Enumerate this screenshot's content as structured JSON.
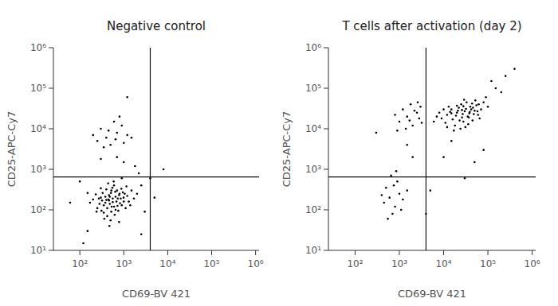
{
  "chart_data": [
    {
      "type": "scatter",
      "title": "Negative control",
      "x_label": "CD69-BV 421",
      "y_label": "CD25-APC-Cy7",
      "log": true,
      "color": "#000000",
      "xlim": [
        25,
        1200000
      ],
      "ylim": [
        10,
        1000000
      ],
      "xticks": [
        {
          "value": 100,
          "label": "10²"
        },
        {
          "value": 1000,
          "label": "10³"
        },
        {
          "value": 10000,
          "label": "10⁴"
        },
        {
          "value": 100000,
          "label": "10⁵"
        },
        {
          "value": 1000000,
          "label": "10⁶"
        }
      ],
      "yticks": [
        {
          "value": 10,
          "label": "10¹"
        },
        {
          "value": 100,
          "label": "10²"
        },
        {
          "value": 1000,
          "label": "10³"
        },
        {
          "value": 10000,
          "label": "10⁴"
        },
        {
          "value": 100000,
          "label": "10⁵"
        },
        {
          "value": 1000000,
          "label": "10⁶"
        }
      ],
      "gate": {
        "x": 4000,
        "y": 650
      },
      "x": [
        450,
        600,
        300,
        800,
        520,
        380,
        700,
        1000,
        250,
        650,
        420,
        900,
        550,
        330,
        1200,
        480,
        750,
        200,
        600,
        1500,
        350,
        850,
        460,
        280,
        1100,
        500,
        680,
        400,
        950,
        230,
        560,
        720,
        310,
        1300,
        440,
        620,
        380,
        880,
        530,
        170,
        780,
        460,
        1700,
        360,
        640,
        270,
        990,
        510,
        420,
        820,
        590,
        300,
        2000,
        470,
        730,
        350,
        1150,
        560,
        240,
        900,
        150,
        650,
        400,
        1400,
        520,
        780,
        320,
        1050,
        480,
        2500,
        400,
        700,
        250,
        900,
        500,
        1200,
        300,
        650,
        800,
        450,
        1500,
        200,
        600,
        1000,
        350,
        150,
        100,
        3000,
        5000,
        1800,
        1000,
        60,
        2500,
        700,
        120,
        4000,
        300,
        8000,
        1200,
        2200
      ],
      "values": [
        180,
        120,
        200,
        250,
        90,
        150,
        300,
        160,
        110,
        210,
        70,
        130,
        350,
        260,
        220,
        140,
        95,
        180,
        400,
        300,
        85,
        190,
        230,
        140,
        110,
        55,
        160,
        320,
        270,
        240,
        190,
        125,
        95,
        160,
        450,
        75,
        210,
        330,
        120,
        150,
        230,
        170,
        190,
        60,
        280,
        190,
        200,
        260,
        110,
        145,
        500,
        340,
        250,
        40,
        190,
        130,
        380,
        155,
        90,
        600,
        260,
        100,
        175,
        130,
        300,
        50,
        170,
        250,
        210,
        400,
        6000,
        8000,
        5000,
        12000,
        4000,
        7000,
        10000,
        5500,
        20000,
        9000,
        6000,
        7000,
        15000,
        4500,
        3500,
        30,
        500,
        90,
        200,
        1200,
        1500,
        150,
        25,
        2000,
        15,
        600,
        1800,
        1000,
        60000,
        800
      ]
    },
    {
      "type": "scatter",
      "title": "T cells after activation (day 2)",
      "x_label": "CD69-BV 421",
      "y_label": "CD25-APC-Cy7",
      "log": true,
      "color": "#000000",
      "xlim": [
        25,
        1200000
      ],
      "ylim": [
        10,
        1000000
      ],
      "xticks": [
        {
          "value": 100,
          "label": "10²"
        },
        {
          "value": 1000,
          "label": "10³"
        },
        {
          "value": 10000,
          "label": "10⁴"
        },
        {
          "value": 100000,
          "label": "10⁵"
        },
        {
          "value": 1000000,
          "label": "10⁶"
        }
      ],
      "yticks": [
        {
          "value": 10,
          "label": "10¹"
        },
        {
          "value": 100,
          "label": "10²"
        },
        {
          "value": 1000,
          "label": "10³"
        },
        {
          "value": 10000,
          "label": "10⁴"
        },
        {
          "value": 100000,
          "label": "10⁵"
        },
        {
          "value": 1000000,
          "label": "10⁶"
        }
      ],
      "gate": {
        "x": 4000,
        "y": 650
      },
      "x": [
        20000,
        35000,
        15000,
        50000,
        28000,
        12000,
        40000,
        25000,
        60000,
        18000,
        30000,
        9000,
        45000,
        22000,
        70000,
        14000,
        33000,
        26000,
        55000,
        11000,
        38000,
        19000,
        80000,
        24000,
        42000,
        16000,
        29000,
        65000,
        8000,
        36000,
        21000,
        48000,
        13000,
        27000,
        90000,
        17000,
        32000,
        58000,
        10000,
        44000,
        23000,
        7000,
        37000,
        52000,
        20000,
        31000,
        100000,
        15000,
        46000,
        6000,
        26000,
        62000,
        12000,
        39000,
        28000,
        1500,
        2500,
        1000,
        3000,
        2000,
        1200,
        2800,
        800,
        1800,
        3200,
        1400,
        2200,
        900,
        2600,
        1700,
        600,
        800,
        500,
        1000,
        700,
        900,
        450,
        1200,
        650,
        550,
        1500,
        750,
        400,
        1100,
        850,
        150000,
        250000,
        120000,
        400000,
        200000,
        10000,
        30000,
        5000,
        80000,
        2000,
        15000,
        1500,
        50000,
        4000,
        300
      ],
      "values": [
        25000,
        20000,
        30000,
        28000,
        15000,
        22000,
        35000,
        40000,
        22000,
        12000,
        27000,
        18000,
        16000,
        33000,
        30000,
        26000,
        45000,
        19000,
        38000,
        14000,
        24000,
        21000,
        45000,
        10000,
        30000,
        17000,
        52000,
        18000,
        25000,
        13000,
        28000,
        23000,
        35000,
        23000,
        60000,
        9000,
        31000,
        27000,
        30000,
        42000,
        16000,
        20000,
        19000,
        50000,
        37000,
        11000,
        35000,
        24000,
        33000,
        15000,
        29000,
        40000,
        11000,
        26000,
        36000,
        20000,
        25000,
        15000,
        35000,
        12000,
        30000,
        18000,
        22000,
        40000,
        14000,
        10000,
        28000,
        9000,
        45000,
        16000,
        200,
        120,
        350,
        250,
        80,
        500,
        150,
        180,
        700,
        60,
        300,
        400,
        230,
        100,
        900,
        100000,
        200000,
        150000,
        300000,
        80000,
        2000,
        600,
        300,
        3000,
        2000,
        5000,
        4000,
        1500,
        80,
        8000
      ]
    }
  ]
}
